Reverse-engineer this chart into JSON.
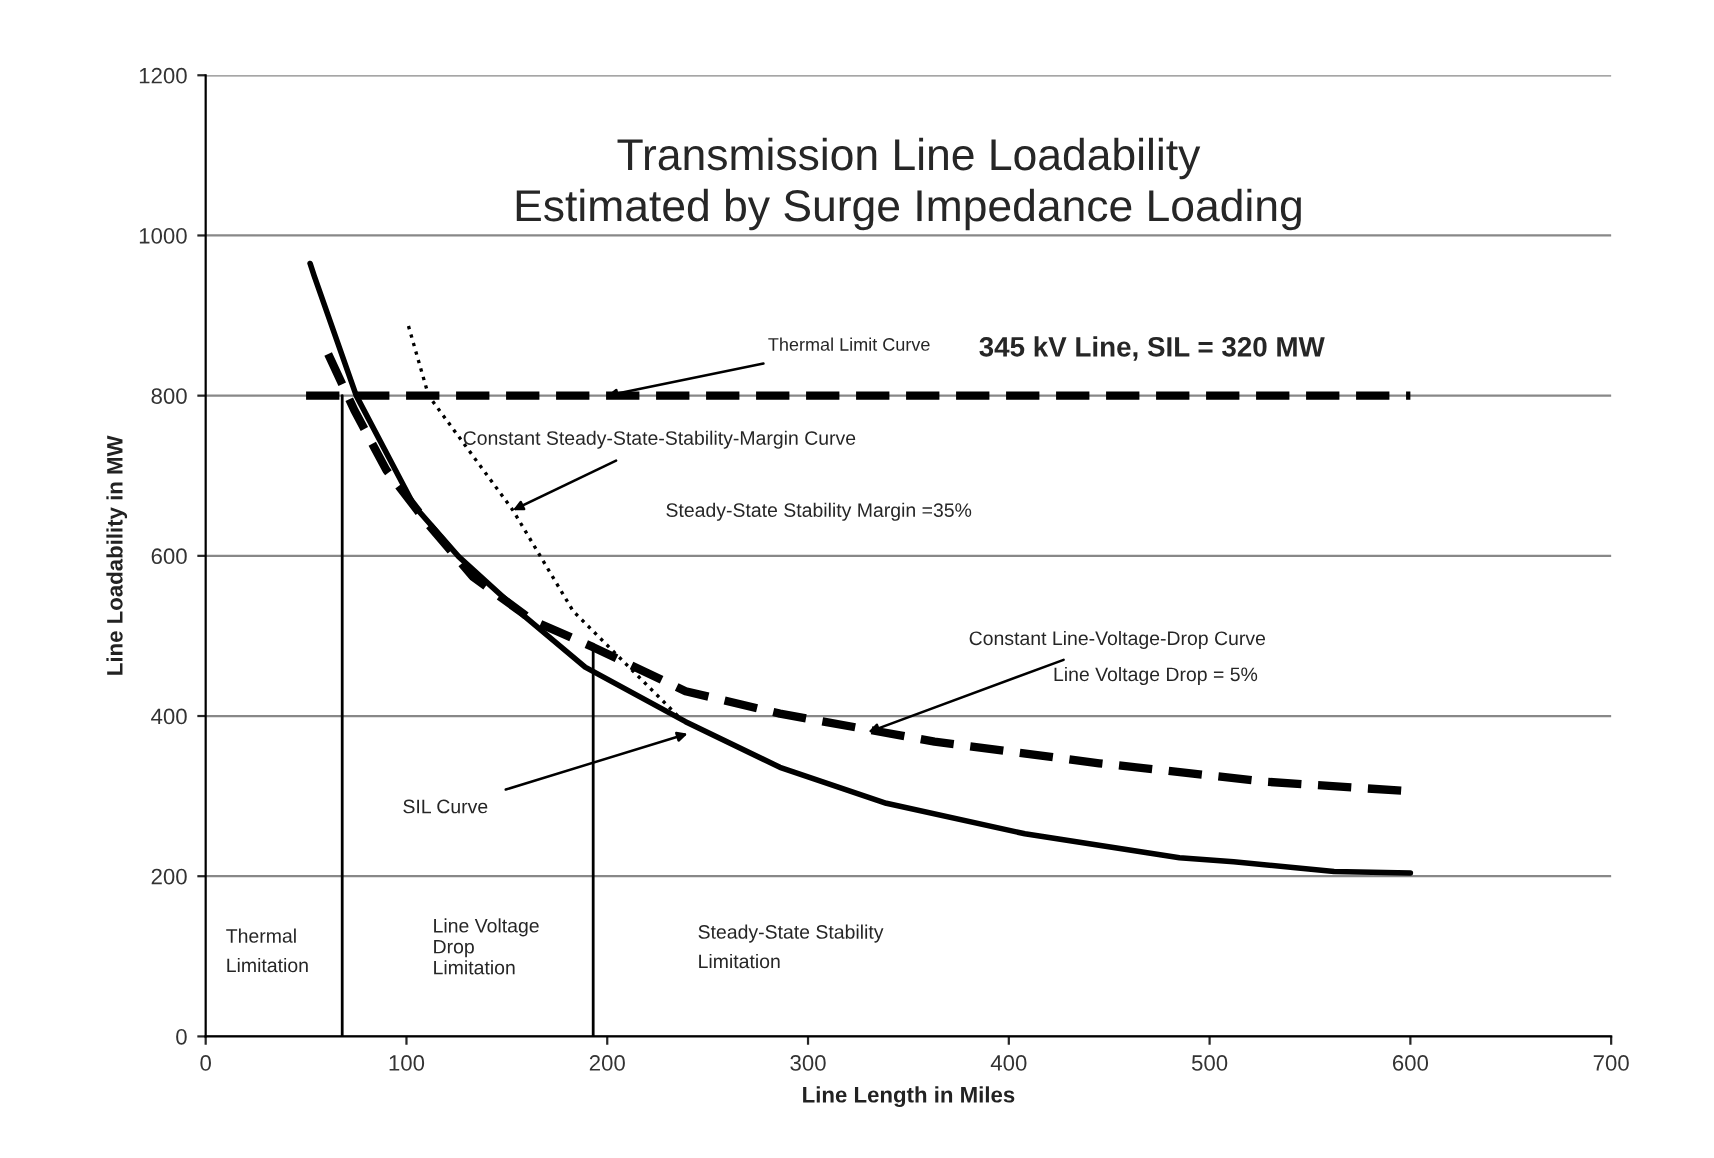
{
  "chart_data": {
    "type": "line",
    "title": "Transmission Line Loadability\nEstimated by Surge Impedance Loading",
    "xlabel": "Line Length in Miles",
    "ylabel": "Line Loadability in MW",
    "xlim": [
      0,
      700
    ],
    "xticks": [
      0,
      100,
      200,
      300,
      400,
      500,
      600,
      700
    ],
    "ylim": [
      0,
      1200
    ],
    "yticks": [
      0,
      200,
      400,
      600,
      800,
      1000,
      1200
    ],
    "grid": "y",
    "legend": false,
    "series": [
      {
        "color": "#000000",
        "line_style": "solid",
        "x": [
          52,
          54,
          75,
          104,
          126,
          159,
          189,
          239,
          286,
          339,
          408,
          485,
          512,
          562,
          600
        ],
        "values": [
          965,
          950,
          800,
          662,
          599,
          524,
          461,
          393,
          336,
          291,
          253,
          223,
          218,
          206,
          204
        ]
      },
      {
        "color": "#000000",
        "line_style": "dashed",
        "x": [
          50,
          600
        ],
        "values": [
          800,
          800
        ]
      },
      {
        "color": "#000000",
        "line_style": "dotted",
        "x": [
          101,
          111,
          153,
          183,
          236
        ],
        "values": [
          887,
          800,
          657,
          531,
          398
        ]
      },
      {
        "color": "#000000",
        "line_style": "dashed",
        "x": [
          61,
          74,
          90,
          110,
          133,
          163,
          193,
          239,
          286,
          363,
          445,
          528,
          600
        ],
        "values": [
          852,
          782,
          707,
          642,
          574,
          519,
          486,
          431,
          403,
          368,
          341,
          318,
          306
        ]
      },
      {
        "color": "#000000",
        "line_style": "solid",
        "x": [
          68,
          68
        ],
        "values": [
          0,
          800
        ]
      },
      {
        "color": "#000000",
        "line_style": "solid",
        "x": [
          193,
          193
        ],
        "values": [
          0,
          486
        ]
      }
    ],
    "annotations": [
      {
        "text": "Thermal Limit Curve",
        "x": 200,
        "y": 800
      },
      "345 kV Line, SIL = 320 MW",
      {
        "text": "Constant Steady-State-Stability-Margin Curve",
        "x": 153,
        "y": 657
      },
      "Steady-State Stability Margin =35%",
      {
        "text": "Constant Line-Voltage-Drop Curve",
        "x": 330,
        "y": 380
      },
      "Line Voltage Drop = 5%",
      {
        "text": "SIL Curve",
        "x": 240,
        "y": 378
      },
      "Thermal\nLimitation",
      "Line Voltage\nDrop\nLimitation",
      "Steady-State Stability\nLimitation"
    ]
  }
}
